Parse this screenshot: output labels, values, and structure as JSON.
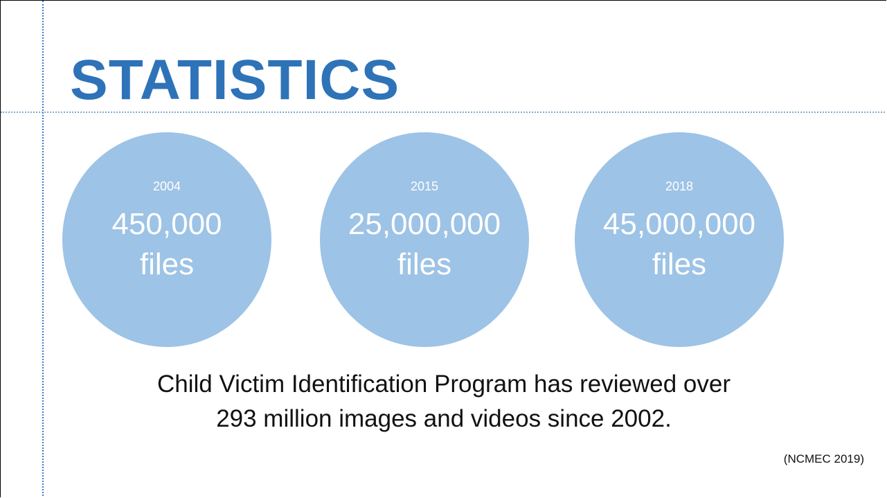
{
  "title": "STATISTICS",
  "stats": [
    {
      "year": "2004",
      "value": "450,000",
      "unit": "files"
    },
    {
      "year": "2015",
      "value": "25,000,000",
      "unit": "files"
    },
    {
      "year": "2018",
      "value": "45,000,000",
      "unit": "files"
    }
  ],
  "body": [
    "Child Victim Identification Program has reviewed over",
    "293 million images and videos since 2002."
  ],
  "citation": "(NCMEC 2019)"
}
